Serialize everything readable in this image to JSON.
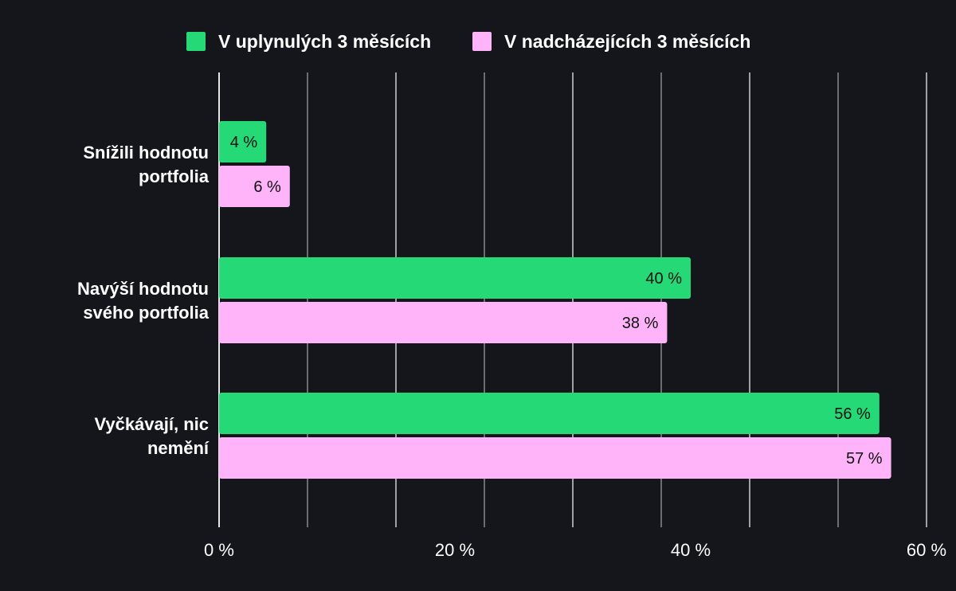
{
  "chart_data": {
    "type": "bar",
    "orientation": "horizontal",
    "categories": [
      [
        "Snížili hodnotu",
        "portfolia"
      ],
      [
        "Navýší hodnotu",
        "svého portfolia"
      ],
      [
        "Vyčkávají, nic",
        "nemění"
      ]
    ],
    "series": [
      {
        "name": "V uplynulých 3 měsících",
        "color": "#26d977",
        "values": [
          4,
          40,
          56
        ],
        "labels": [
          "4 %",
          "40 %",
          "56 %"
        ]
      },
      {
        "name": "V nadcházejících 3 měsících",
        "color": "#ffb3f9",
        "values": [
          6,
          38,
          57
        ],
        "labels": [
          "6 %",
          "38 %",
          "57 %"
        ]
      }
    ],
    "xlim": [
      0,
      60
    ],
    "x_ticks": [
      0,
      20,
      40,
      60
    ],
    "x_tick_labels": [
      "0 %",
      "20 %",
      "40 %",
      "60 %"
    ],
    "minor_gridlines": true,
    "legend": "top-center",
    "background": "#15161b"
  }
}
